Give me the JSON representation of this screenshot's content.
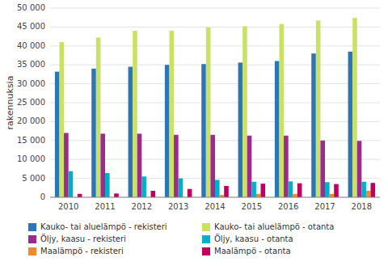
{
  "chart_data": {
    "type": "bar",
    "y_label": "rakennuksia",
    "categories": [
      "2010",
      "2011",
      "2012",
      "2013",
      "2014",
      "2015",
      "2016",
      "2017",
      "2018"
    ],
    "series": [
      {
        "name": "Kauko- tai aluelämpö - rekisteri",
        "color": "#2E75B6",
        "values": [
          33200,
          34000,
          34500,
          35000,
          35200,
          35600,
          36000,
          38000,
          38500
        ]
      },
      {
        "name": "Kauko- tai aluelämpö - otanta",
        "color": "#C9E266",
        "values": [
          41000,
          42200,
          44000,
          44000,
          44900,
          45200,
          45800,
          46700,
          47400
        ]
      },
      {
        "name": "Öljy, kaasu - rekisteri",
        "color": "#9E2A8D",
        "values": [
          17000,
          16800,
          16800,
          16500,
          16500,
          16300,
          16300,
          15000,
          14900
        ]
      },
      {
        "name": "Öljy, kaasu - otanta",
        "color": "#00B0C8",
        "values": [
          6900,
          6400,
          5500,
          5000,
          4600,
          4100,
          4200,
          4000,
          4100
        ]
      },
      {
        "name": "Maalämpö - rekisteri",
        "color": "#ED8B2E",
        "values": [
          0,
          0,
          0,
          0,
          600,
          900,
          900,
          900,
          1700
        ]
      },
      {
        "name": "Maalämpö - otanta",
        "color": "#C00060",
        "values": [
          900,
          1000,
          1700,
          2200,
          3000,
          3600,
          3700,
          3500,
          3800
        ]
      }
    ],
    "ylim": [
      0,
      50000
    ],
    "yticks": [
      0,
      {
        "value": 5000,
        "label": "5 000"
      },
      {
        "value": 10000,
        "label": "10 000"
      },
      {
        "value": 15000,
        "label": "15 000"
      },
      {
        "value": 20000,
        "label": "20 000"
      },
      {
        "value": 25000,
        "label": "25 000"
      },
      {
        "value": 30000,
        "label": "30 000"
      },
      {
        "value": 35000,
        "label": "35 000"
      },
      {
        "value": 40000,
        "label": "40 000"
      },
      {
        "value": 45000,
        "label": "45 000"
      },
      {
        "value": 50000,
        "label": "50 000"
      }
    ],
    "grid": true,
    "legend": "bottom"
  }
}
